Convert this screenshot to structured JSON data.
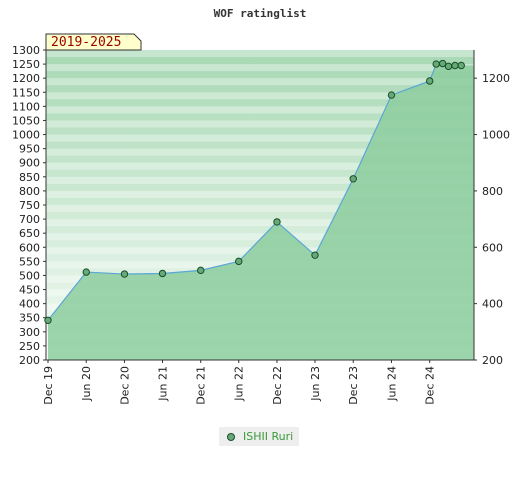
{
  "chart_data": {
    "type": "area",
    "title": "WOF ratinglist",
    "badge": "2019-2025",
    "ylim": [
      200,
      1300
    ],
    "y_ticks_left": [
      "200",
      "250",
      "300",
      "350",
      "400",
      "450",
      "500",
      "550",
      "600",
      "650",
      "700",
      "750",
      "800",
      "850",
      "900",
      "950",
      "1000",
      "1050",
      "1100",
      "1150",
      "1200",
      "1250",
      "1300"
    ],
    "y_ticks_right": [
      "200",
      "400",
      "600",
      "800",
      "1000",
      "1200"
    ],
    "x_ticks": [
      "Dec 19",
      "Jun 20",
      "Dec 20",
      "Jun 21",
      "Dec 21",
      "Jun 22",
      "Dec 22",
      "Jun 23",
      "Dec 23",
      "Jun 24",
      "Dec 24"
    ],
    "xlim": [
      "2019-12-01",
      "2025-07-01"
    ],
    "series": [
      {
        "name": "ISHII Ruri",
        "points": [
          {
            "x": "2019-12-01",
            "y": 341
          },
          {
            "x": "2020-06-01",
            "y": 512
          },
          {
            "x": "2020-12-01",
            "y": 505
          },
          {
            "x": "2021-06-01",
            "y": 507
          },
          {
            "x": "2021-12-01",
            "y": 518
          },
          {
            "x": "2022-06-01",
            "y": 550
          },
          {
            "x": "2022-12-01",
            "y": 690
          },
          {
            "x": "2023-06-01",
            "y": 572
          },
          {
            "x": "2023-12-01",
            "y": 843
          },
          {
            "x": "2024-06-01",
            "y": 1140
          },
          {
            "x": "2024-12-01",
            "y": 1190
          },
          {
            "x": "2025-01-01",
            "y": 1250
          },
          {
            "x": "2025-02-01",
            "y": 1252
          },
          {
            "x": "2025-03-01",
            "y": 1242
          },
          {
            "x": "2025-04-01",
            "y": 1245
          },
          {
            "x": "2025-05-01",
            "y": 1245
          }
        ]
      }
    ],
    "grid": true,
    "legend_position": "bottom"
  },
  "colors": {
    "area_fill": "#8ccc9e",
    "line": "#5aa6d6",
    "marker_fill": "#66aa77",
    "marker_stroke": "#1a4d2a",
    "badge_bg": "#ffffcc"
  }
}
